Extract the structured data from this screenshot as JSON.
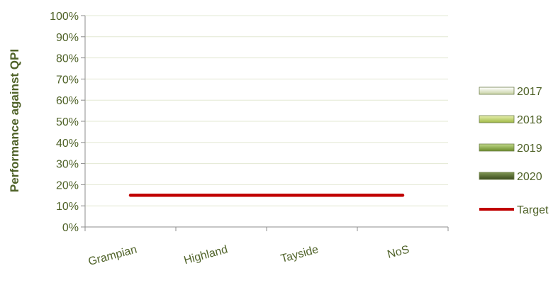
{
  "chart_data": {
    "type": "bar",
    "title": "",
    "xlabel": "",
    "ylabel": "Performance against QPI",
    "categories": [
      "Grampian",
      "Highland",
      "Tayside",
      "NoS"
    ],
    "ylim": [
      0,
      100
    ],
    "yticks": [
      "0%",
      "10%",
      "20%",
      "30%",
      "40%",
      "50%",
      "60%",
      "70%",
      "80%",
      "90%",
      "100%"
    ],
    "grid": true,
    "legend_position": "right",
    "series": [
      {
        "name": "2017",
        "values": [
          0,
          0,
          0,
          0
        ],
        "color": "#e6edcf"
      },
      {
        "name": "2018",
        "values": [
          0,
          0,
          0,
          0
        ],
        "color": "#c3d66b"
      },
      {
        "name": "2019",
        "values": [
          0,
          0,
          0,
          0
        ],
        "color": "#8fae3e"
      },
      {
        "name": "2020",
        "values": [
          0,
          0,
          0,
          0
        ],
        "color": "#4f6228"
      }
    ],
    "target": {
      "name": "Target",
      "value": 15,
      "color": "#c00000"
    }
  }
}
